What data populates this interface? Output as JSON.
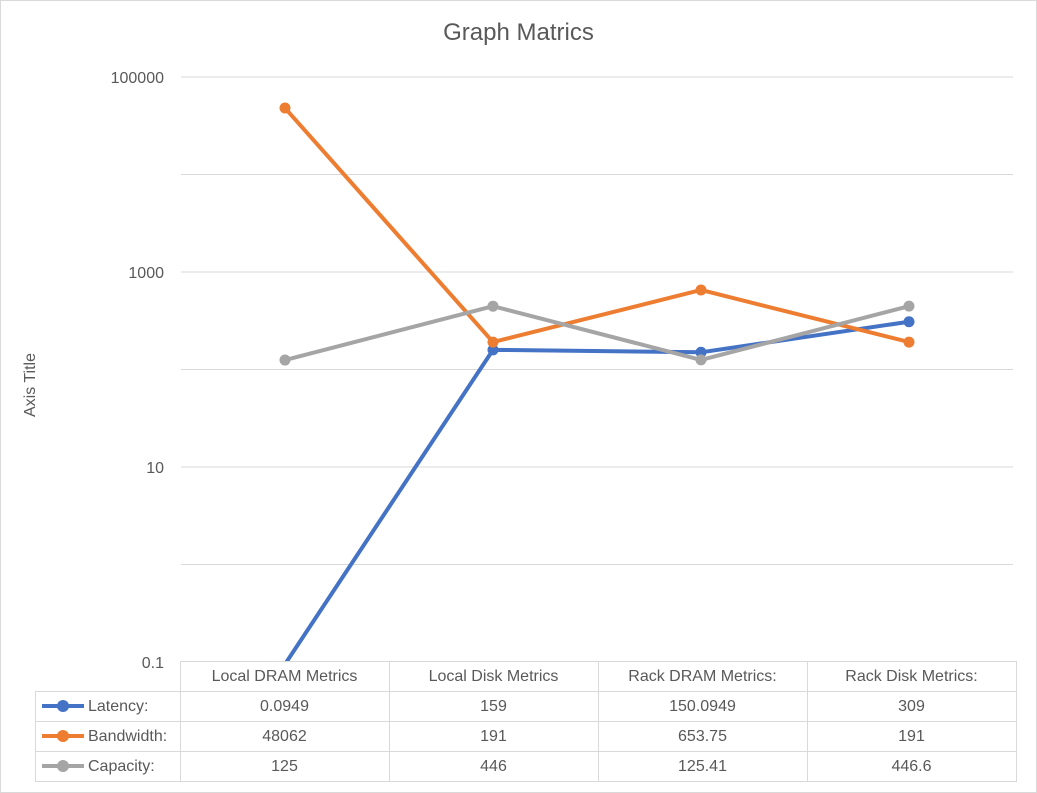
{
  "chart_data": {
    "type": "line",
    "title": "Graph Matrics",
    "ylabel": "Axis Title",
    "xlabel": "",
    "y_scale": "log",
    "ylim": [
      0.1,
      100000
    ],
    "y_ticks": [
      "100000",
      "1000",
      "10",
      "0.1"
    ],
    "grid": true,
    "legend": "data-table",
    "categories": [
      "Local DRAM Metrics",
      "Local Disk Metrics",
      "Rack DRAM Metrics:",
      "Rack Disk Metrics:"
    ],
    "series": [
      {
        "name": "Latency:",
        "color": "#4472c4",
        "values": [
          0.0949,
          159,
          150.0949,
          309
        ],
        "labels": [
          "0.0949",
          "159",
          "150.0949",
          "309"
        ]
      },
      {
        "name": "Bandwidth:",
        "color": "#ed7d31",
        "values": [
          48062,
          191,
          653.75,
          191
        ],
        "labels": [
          "48062",
          "191",
          "653.75",
          "191"
        ]
      },
      {
        "name": "Capacity:",
        "color": "#a5a5a5",
        "values": [
          125,
          446,
          125.41,
          446.6
        ],
        "labels": [
          "125",
          "446",
          "125.41",
          "446.6"
        ]
      }
    ]
  }
}
